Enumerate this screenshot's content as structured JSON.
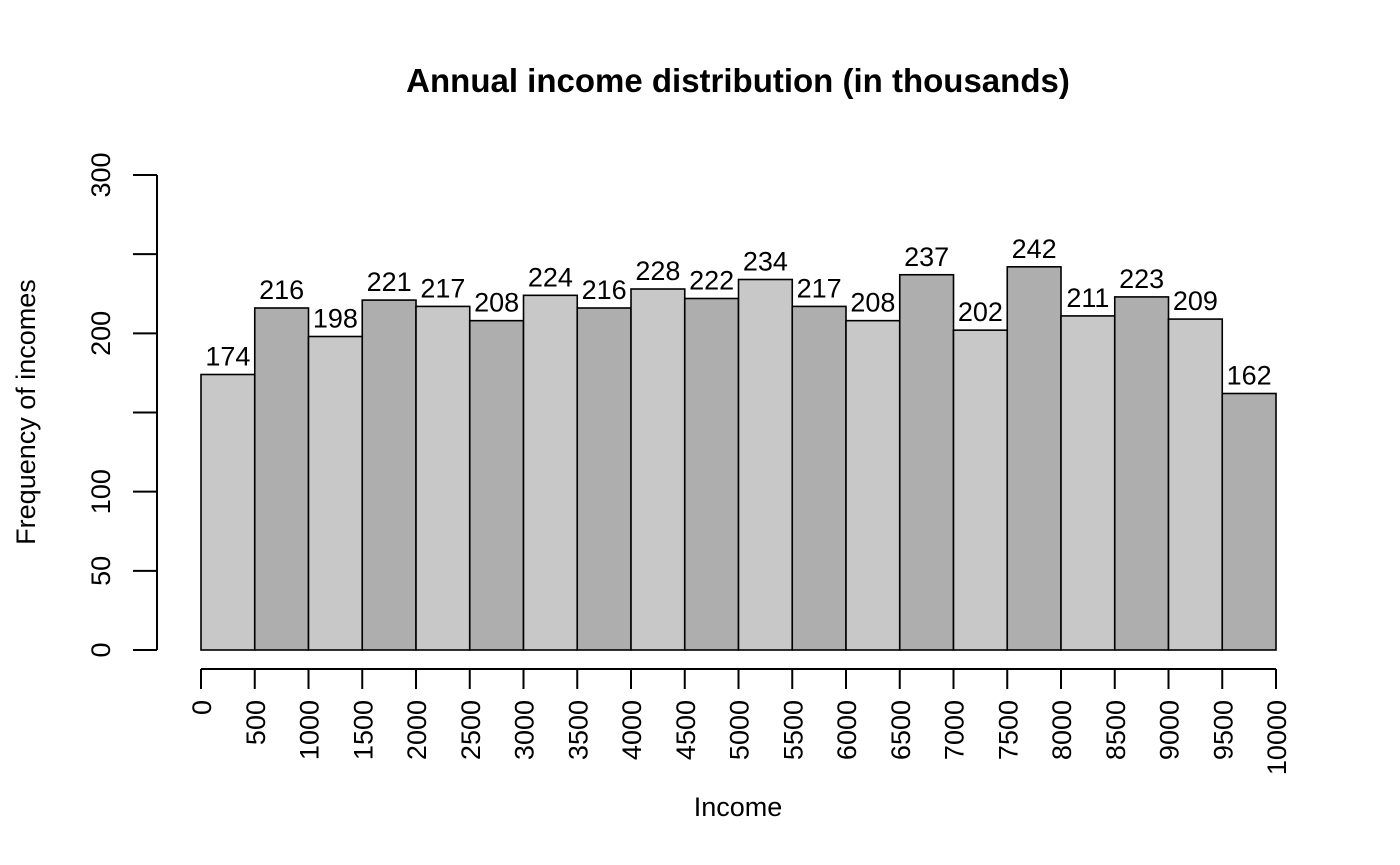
{
  "chart_data": {
    "type": "bar",
    "title": "Annual income distribution (in thousands)",
    "xlabel": "Income",
    "ylabel": "Frequency of incomes",
    "bin_edges": [
      0,
      500,
      1000,
      1500,
      2000,
      2500,
      3000,
      3500,
      4000,
      4500,
      5000,
      5500,
      6000,
      6500,
      7000,
      7500,
      8000,
      8500,
      9000,
      9500,
      10000
    ],
    "values": [
      174,
      216,
      198,
      221,
      217,
      208,
      224,
      216,
      228,
      222,
      234,
      217,
      208,
      237,
      202,
      242,
      211,
      223,
      209,
      162
    ],
    "xlim": [
      0,
      10000
    ],
    "ylim": [
      0,
      300
    ],
    "x_ticks": [
      "0",
      "500",
      "1000",
      "1500",
      "2000",
      "2500",
      "3000",
      "3500",
      "4000",
      "4500",
      "5000",
      "5500",
      "6000",
      "6500",
      "7000",
      "7500",
      "8000",
      "8500",
      "9000",
      "9500",
      "10000"
    ],
    "y_tick_values": [
      0,
      50,
      100,
      150,
      200,
      250,
      300
    ],
    "y_tick_labels": [
      "0",
      "50",
      "100",
      "",
      "200",
      "",
      "300"
    ],
    "bar_colors": [
      "#c8c8c8",
      "#aeaeae"
    ],
    "grid": false
  }
}
